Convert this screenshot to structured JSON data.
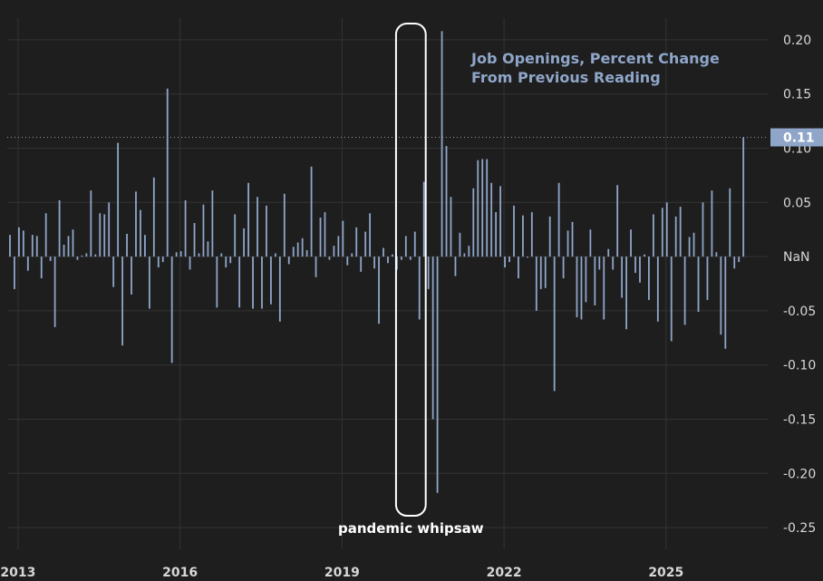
{
  "chart_data": {
    "type": "bar",
    "title_lines": [
      "Job Openings, Percent Change",
      "From Previous Reading"
    ],
    "xlabel": "",
    "ylabel": "",
    "ylim": [
      -0.27,
      0.22
    ],
    "xlim": [
      2012.8,
      2026.9
    ],
    "grid": true,
    "y_ticks": [
      {
        "value": 0.2,
        "label": "0.20"
      },
      {
        "value": 0.15,
        "label": "0.15"
      },
      {
        "value": 0.1,
        "label": "0.10"
      },
      {
        "value": 0.05,
        "label": "0.05"
      },
      {
        "value": 0.0,
        "label": "NaN"
      },
      {
        "value": -0.05,
        "label": "-0.05"
      },
      {
        "value": -0.1,
        "label": "-0.10"
      },
      {
        "value": -0.15,
        "label": "-0.15"
      },
      {
        "value": -0.2,
        "label": "-0.20"
      },
      {
        "value": -0.25,
        "label": "-0.25"
      }
    ],
    "x_ticks": [
      {
        "value": 2013,
        "label": "2013"
      },
      {
        "value": 2016,
        "label": "2016"
      },
      {
        "value": 2019,
        "label": "2019"
      },
      {
        "value": 2022,
        "label": "2022"
      },
      {
        "value": 2025,
        "label": "2025"
      }
    ],
    "last_value": {
      "value": 0.11,
      "label": "0.11"
    },
    "annotation": {
      "text": "pandemic whipsaw",
      "x_range": [
        2020.0,
        2020.55
      ]
    },
    "colors": {
      "background": "#1e1e1e",
      "bar": "#8fa6c9",
      "grid": "#333333",
      "badge": "#8fa6c9",
      "annotation_box": "#ffffff"
    },
    "series": [
      {
        "start_year": 2012.85,
        "step_years": 0.08333,
        "values": [
          0.02,
          -0.03,
          0.027,
          0.024,
          -0.013,
          0.02,
          0.019,
          -0.02,
          0.04,
          -0.004,
          -0.065,
          0.052,
          0.011,
          0.019,
          0.025,
          -0.003,
          0.001,
          0.003,
          0.061,
          0.002,
          0.04,
          0.039,
          0.05,
          -0.028,
          0.105,
          -0.082,
          0.021,
          -0.035,
          0.06,
          0.043,
          0.02,
          -0.048,
          0.073,
          -0.01,
          -0.005,
          0.155,
          -0.098,
          0.004,
          0.005,
          0.052,
          -0.012,
          0.031,
          0.003,
          0.048,
          0.014,
          0.061,
          -0.047,
          0.003,
          -0.01,
          -0.006,
          0.039,
          -0.047,
          0.026,
          0.068,
          -0.048,
          0.055,
          -0.048,
          0.047,
          -0.044,
          0.003,
          -0.06,
          0.058,
          -0.007,
          0.009,
          0.013,
          0.017,
          0.006,
          0.083,
          -0.019,
          0.036,
          0.041,
          -0.003,
          0.01,
          0.019,
          0.033,
          -0.008,
          0.003,
          0.027,
          -0.014,
          0.023,
          0.04,
          -0.011,
          -0.062,
          0.008,
          -0.006,
          0.002,
          -0.012,
          -0.003,
          0.019,
          -0.003,
          0.023,
          -0.058,
          0.069,
          -0.03,
          -0.15,
          -0.218,
          0.208,
          0.102,
          0.055,
          -0.018,
          0.022,
          0.003,
          0.01,
          0.063,
          0.089,
          0.09,
          0.09,
          0.068,
          0.041,
          0.065,
          -0.01,
          -0.005,
          0.047,
          -0.02,
          0.038,
          -0.001,
          0.041,
          -0.05,
          -0.03,
          -0.029,
          0.037,
          -0.124,
          0.068,
          -0.02,
          0.024,
          0.032,
          -0.056,
          -0.058,
          -0.042,
          0.025,
          -0.045,
          -0.012,
          -0.058,
          0.007,
          -0.012,
          0.066,
          -0.038,
          -0.067,
          0.025,
          -0.015,
          -0.024,
          0.002,
          -0.04,
          0.039,
          -0.06,
          0.045,
          0.05,
          -0.078,
          0.037,
          0.046,
          -0.063,
          0.018,
          0.022,
          -0.051,
          0.05,
          -0.04,
          0.061,
          0.004,
          -0.072,
          -0.085,
          0.063,
          -0.011,
          -0.005,
          0.11
        ]
      }
    ]
  }
}
